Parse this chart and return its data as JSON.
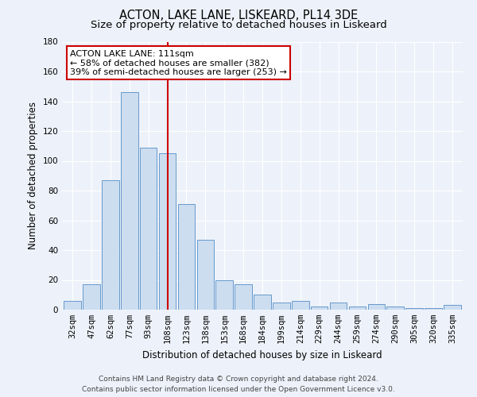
{
  "title": "ACTON, LAKE LANE, LISKEARD, PL14 3DE",
  "subtitle": "Size of property relative to detached houses in Liskeard",
  "xlabel": "Distribution of detached houses by size in Liskeard",
  "ylabel": "Number of detached properties",
  "bar_labels": [
    "32sqm",
    "47sqm",
    "62sqm",
    "77sqm",
    "93sqm",
    "108sqm",
    "123sqm",
    "138sqm",
    "153sqm",
    "168sqm",
    "184sqm",
    "199sqm",
    "214sqm",
    "229sqm",
    "244sqm",
    "259sqm",
    "274sqm",
    "290sqm",
    "305sqm",
    "320sqm",
    "335sqm"
  ],
  "bar_values": [
    6,
    17,
    87,
    146,
    109,
    105,
    71,
    47,
    20,
    17,
    10,
    5,
    6,
    2,
    5,
    2,
    4,
    2,
    1,
    1,
    3
  ],
  "bar_color": "#ccddf0",
  "bar_edge_color": "#6699cc",
  "vline_color": "#cc0000",
  "annotation_title": "ACTON LAKE LANE: 111sqm",
  "annotation_line1": "← 58% of detached houses are smaller (382)",
  "annotation_line2": "39% of semi-detached houses are larger (253) →",
  "annotation_box_color": "#ffffff",
  "annotation_box_edge": "#cc0000",
  "ylim": [
    0,
    180
  ],
  "yticks": [
    0,
    20,
    40,
    60,
    80,
    100,
    120,
    140,
    160,
    180
  ],
  "footer_line1": "Contains HM Land Registry data © Crown copyright and database right 2024.",
  "footer_line2": "Contains public sector information licensed under the Open Government Licence v3.0.",
  "background_color": "#edf2fa",
  "grid_color": "#ffffff",
  "title_fontsize": 10.5,
  "subtitle_fontsize": 9.5,
  "axis_label_fontsize": 8.5,
  "tick_fontsize": 7.5,
  "footer_fontsize": 6.5
}
